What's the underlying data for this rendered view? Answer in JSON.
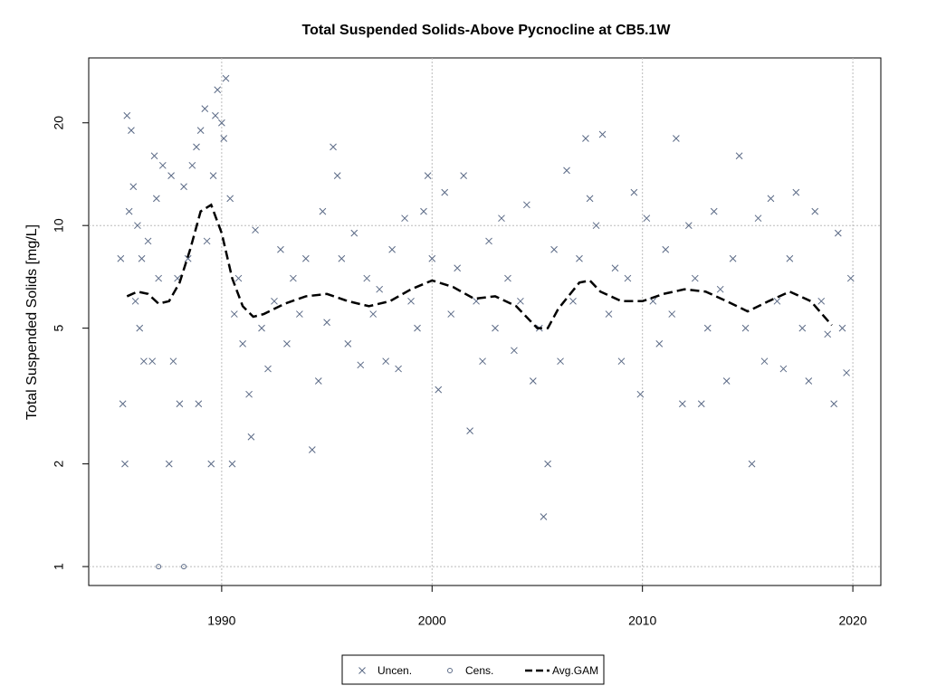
{
  "chart_data": {
    "type": "scatter",
    "title": "Total Suspended Solids-Above Pycnocline at CB5.1W",
    "y_label": "Total Suspended Solids [mg/L]",
    "log_y": true,
    "xlim": [
      1983.68,
      2021.33
    ],
    "ylim": [
      0.88,
      31
    ],
    "xticks": [
      1990,
      2000,
      2010,
      2020
    ],
    "yticks": [
      1,
      2,
      5,
      10,
      20
    ],
    "grid_x": [
      1990,
      2000,
      2010,
      2020
    ],
    "grid_y": [
      1,
      10
    ],
    "legend": "bottom",
    "series": [
      {
        "name": "Uncen.",
        "type": "scatter",
        "marker": "x",
        "color": "#5b6a86",
        "x": [
          1985.2,
          1985.3,
          1985.4,
          1985.5,
          1985.6,
          1985.7,
          1985.8,
          1985.9,
          1986.0,
          1986.1,
          1986.2,
          1986.3,
          1986.5,
          1986.7,
          1986.8,
          1986.9,
          1987.0,
          1987.2,
          1987.5,
          1987.6,
          1987.7,
          1987.9,
          1988.0,
          1988.2,
          1988.4,
          1988.6,
          1988.8,
          1988.9,
          1989.0,
          1989.2,
          1989.3,
          1989.5,
          1989.6,
          1989.7,
          1989.8,
          1990.0,
          1990.1,
          1990.2,
          1990.4,
          1990.5,
          1990.6,
          1990.8,
          1991.0,
          1991.3,
          1991.4,
          1991.6,
          1991.9,
          1992.2,
          1992.5,
          1992.8,
          1993.1,
          1993.4,
          1993.7,
          1994.0,
          1994.3,
          1994.6,
          1994.8,
          1995.0,
          1995.3,
          1995.5,
          1995.7,
          1996.0,
          1996.3,
          1996.6,
          1996.9,
          1997.2,
          1997.5,
          1997.8,
          1998.1,
          1998.4,
          1998.7,
          1999.0,
          1999.3,
          1999.6,
          1999.8,
          2000.0,
          2000.3,
          2000.6,
          2000.9,
          2001.2,
          2001.5,
          2001.8,
          2002.1,
          2002.4,
          2002.7,
          2003.0,
          2003.3,
          2003.6,
          2003.9,
          2004.2,
          2004.5,
          2004.8,
          2005.1,
          2005.3,
          2005.5,
          2005.8,
          2006.1,
          2006.4,
          2006.7,
          2007.0,
          2007.3,
          2007.5,
          2007.8,
          2008.1,
          2008.4,
          2008.7,
          2009.0,
          2009.3,
          2009.6,
          2009.9,
          2010.2,
          2010.5,
          2010.8,
          2011.1,
          2011.4,
          2011.6,
          2011.9,
          2012.2,
          2012.5,
          2012.8,
          2013.1,
          2013.4,
          2013.7,
          2014.0,
          2014.3,
          2014.6,
          2014.9,
          2015.2,
          2015.5,
          2015.8,
          2016.1,
          2016.4,
          2016.7,
          2017.0,
          2017.3,
          2017.6,
          2017.9,
          2018.2,
          2018.5,
          2018.8,
          2019.1,
          2019.3,
          2019.5,
          2019.7,
          2019.9
        ],
        "values": [
          8,
          3,
          2,
          21,
          11,
          19,
          13,
          6,
          10,
          5,
          8,
          4,
          9,
          4,
          16,
          12,
          7,
          15,
          2,
          14,
          4,
          7,
          3,
          13,
          8,
          15,
          17,
          3,
          19,
          22,
          9,
          2,
          14,
          21,
          25,
          20,
          18,
          27,
          12,
          2,
          5.5,
          7,
          4.5,
          3.2,
          2.4,
          9.7,
          5,
          3.8,
          6,
          8.5,
          4.5,
          7,
          5.5,
          8,
          2.2,
          3.5,
          11,
          5.2,
          17,
          14,
          8,
          4.5,
          9.5,
          3.9,
          7,
          5.5,
          6.5,
          4,
          8.5,
          3.8,
          10.5,
          6,
          5,
          11,
          14,
          8,
          3.3,
          12.5,
          5.5,
          7.5,
          14,
          2.5,
          6,
          4,
          9,
          5,
          10.5,
          7,
          4.3,
          6,
          11.5,
          3.5,
          5,
          1.4,
          2,
          8.5,
          4,
          14.5,
          6,
          8,
          18,
          12,
          10,
          18.5,
          5.5,
          7.5,
          4,
          7,
          12.5,
          3.2,
          10.5,
          6,
          4.5,
          8.5,
          5.5,
          18,
          3,
          10,
          7,
          3,
          5,
          11,
          6.5,
          3.5,
          8,
          16,
          5,
          2,
          10.5,
          4,
          12,
          6,
          3.8,
          8,
          12.5,
          5,
          3.5,
          11,
          6,
          4.8,
          3,
          9.5,
          5,
          3.7,
          7
        ]
      },
      {
        "name": "Cens.",
        "type": "scatter",
        "marker": "circle",
        "color": "#5b6a86",
        "x": [
          1987.0,
          1988.2
        ],
        "values": [
          1,
          1
        ]
      },
      {
        "name": "Avg.GAM",
        "type": "line",
        "dash": true,
        "color": "#000000",
        "x": [
          1985.5,
          1986,
          1986.5,
          1987,
          1987.5,
          1988,
          1988.5,
          1989,
          1989.5,
          1990,
          1990.5,
          1991,
          1991.5,
          1992,
          1993,
          1994,
          1995,
          1996,
          1997,
          1998,
          1999,
          2000,
          2001,
          2002,
          2003,
          2004,
          2005,
          2005.5,
          2006,
          2007,
          2007.5,
          2008,
          2009,
          2010,
          2011,
          2012,
          2013,
          2014,
          2015,
          2016,
          2017,
          2018,
          2019
        ],
        "values": [
          6.2,
          6.4,
          6.3,
          5.9,
          6.0,
          6.8,
          8.5,
          11,
          11.5,
          9.5,
          7.0,
          5.8,
          5.4,
          5.5,
          5.9,
          6.2,
          6.3,
          6.0,
          5.8,
          6.0,
          6.5,
          6.9,
          6.6,
          6.1,
          6.2,
          5.8,
          5.0,
          5.0,
          5.7,
          6.8,
          6.9,
          6.4,
          6.0,
          6.0,
          6.3,
          6.5,
          6.4,
          6.0,
          5.6,
          6.0,
          6.4,
          6.0,
          5.1
        ]
      }
    ]
  }
}
